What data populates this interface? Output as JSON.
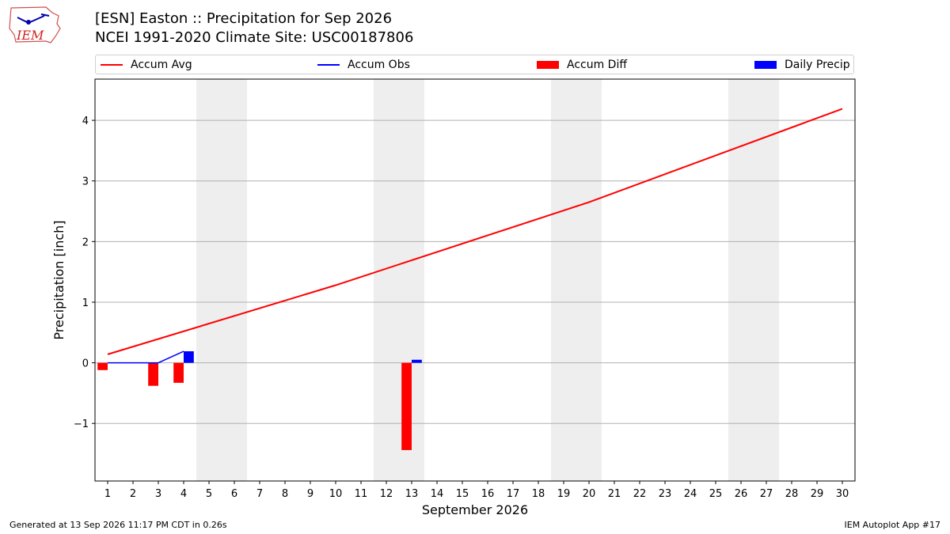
{
  "header": {
    "title_line1": "[ESN] Easton :: Precipitation for Sep 2026",
    "title_line2": "NCEI 1991-2020 Climate Site: USC00187806",
    "logo_text": "IEM"
  },
  "colors": {
    "avg": "#ff0000",
    "obs": "#0000ff",
    "diff": "#ff0000",
    "daily": "#0000ff",
    "weekend": "#eeeeee",
    "grid": "#b0b0b0"
  },
  "legend": [
    {
      "label": "Accum Avg",
      "kind": "line",
      "color": "#ff0000"
    },
    {
      "label": "Accum Obs",
      "kind": "line",
      "color": "#0000ff"
    },
    {
      "label": "Accum Diff",
      "kind": "patch",
      "color": "#ff0000"
    },
    {
      "label": "Daily Precip",
      "kind": "patch",
      "color": "#0000ff"
    }
  ],
  "chart_data": {
    "type": "bar",
    "xlabel": "September 2026",
    "ylabel": "Precipitation [inch]",
    "xlim": [
      0.5,
      30.5
    ],
    "ylim": [
      -1.95,
      4.68
    ],
    "yticks": [
      -1,
      0,
      1,
      2,
      3,
      4
    ],
    "ytick_labels": [
      "−1",
      "0",
      "1",
      "2",
      "3",
      "4"
    ],
    "grid": true,
    "legend_position": "top",
    "x_days": [
      1,
      2,
      3,
      4,
      5,
      6,
      7,
      8,
      9,
      10,
      11,
      12,
      13,
      14,
      15,
      16,
      17,
      18,
      19,
      20,
      21,
      22,
      23,
      24,
      25,
      26,
      27,
      28,
      29,
      30
    ],
    "weekend_spans": [
      [
        4.5,
        6.5
      ],
      [
        11.5,
        13.5
      ],
      [
        18.5,
        20.5
      ],
      [
        25.5,
        27.5
      ]
    ],
    "accum_avg": {
      "x": [
        1,
        10,
        20,
        30
      ],
      "y": [
        0.14,
        1.28,
        2.65,
        4.19
      ]
    },
    "accum_obs": {
      "x": [
        1,
        2,
        3,
        4
      ],
      "y": [
        0,
        0,
        0,
        0.19
      ]
    },
    "accum_diff": {
      "x": [
        1,
        3,
        4,
        13
      ],
      "y": [
        -0.12,
        -0.38,
        -0.33,
        -1.44
      ]
    },
    "daily_precip": {
      "x": [
        4,
        13
      ],
      "y": [
        0.19,
        0.05
      ]
    }
  },
  "footer": {
    "left": "Generated at 13 Sep 2026 11:17 PM CDT in 0.26s",
    "right": "IEM Autoplot App #17"
  }
}
